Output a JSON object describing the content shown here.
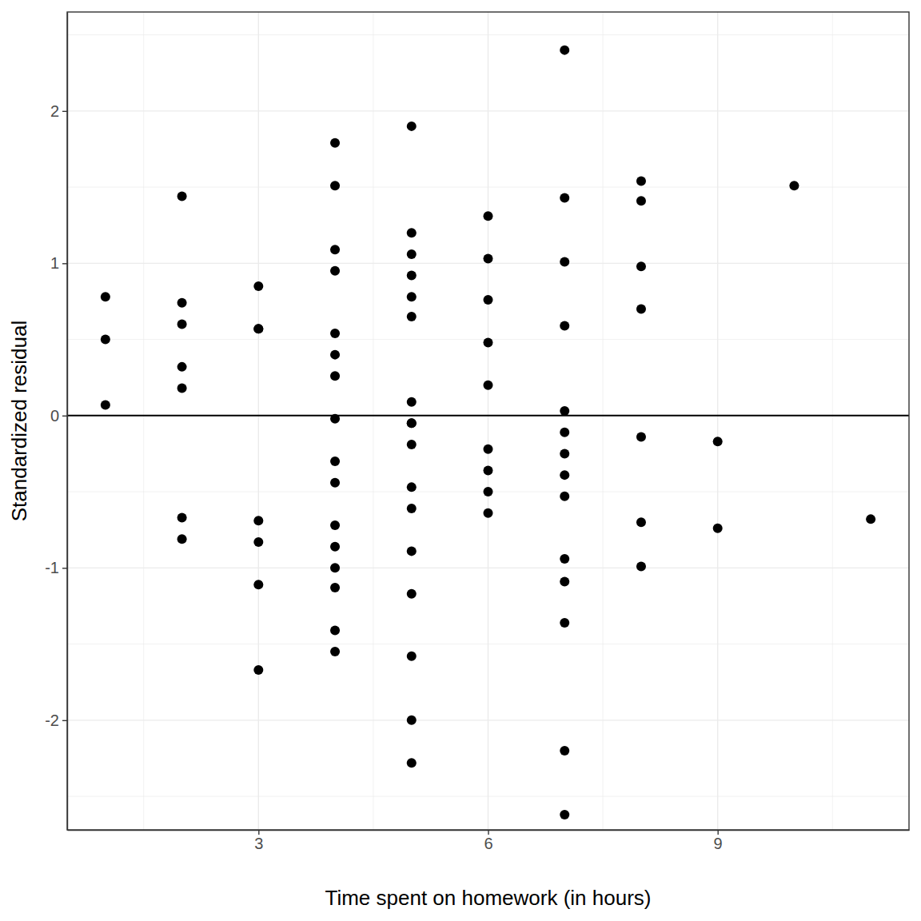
{
  "chart_data": {
    "type": "scatter",
    "x_label": "Time spent on homework (in hours)",
    "y_label": "Standardized residual",
    "x": [
      1,
      1,
      1,
      2,
      2,
      2,
      2,
      2,
      2,
      2,
      3,
      3,
      3,
      3,
      3,
      3,
      3,
      4,
      4,
      4,
      4,
      4,
      4,
      4,
      4,
      4,
      4,
      4,
      4,
      4,
      4,
      4,
      4,
      5,
      5,
      5,
      5,
      5,
      5,
      5,
      5,
      5,
      5,
      5,
      5,
      5,
      5,
      5,
      5,
      5,
      6,
      6,
      6,
      6,
      6,
      6,
      6,
      6,
      6,
      7,
      7,
      7,
      7,
      7,
      7,
      7,
      7,
      7,
      7,
      7,
      7,
      7,
      7,
      8,
      8,
      8,
      8,
      8,
      8,
      8,
      9,
      9,
      10,
      11
    ],
    "y": [
      0.78,
      0.5,
      0.07,
      1.44,
      0.74,
      0.6,
      0.32,
      0.18,
      -0.67,
      -0.81,
      0.85,
      0.57,
      0.57,
      -0.69,
      -0.83,
      -1.11,
      -1.67,
      1.79,
      1.51,
      1.09,
      0.95,
      0.54,
      0.4,
      0.26,
      -0.02,
      -0.3,
      -0.44,
      -0.72,
      -0.86,
      -1.0,
      -1.13,
      -1.41,
      -1.55,
      1.9,
      1.2,
      1.06,
      0.92,
      0.78,
      0.65,
      0.09,
      -0.05,
      -0.05,
      -0.19,
      -0.47,
      -0.61,
      -0.89,
      -1.17,
      -1.58,
      -2.0,
      -2.28,
      1.31,
      1.03,
      0.76,
      0.48,
      0.2,
      -0.22,
      -0.36,
      -0.5,
      -0.64,
      2.4,
      1.43,
      1.01,
      0.59,
      0.03,
      -0.11,
      -0.25,
      -0.39,
      -0.53,
      -0.94,
      -1.09,
      -1.36,
      -2.2,
      -2.62,
      1.54,
      1.41,
      0.98,
      0.7,
      -0.14,
      -0.7,
      -0.99,
      -0.17,
      -0.74,
      1.51,
      -0.68
    ],
    "color": "#000000",
    "hline": 0,
    "xlim": [
      0.5,
      11.5
    ],
    "ylim": [
      -2.72,
      2.65
    ],
    "xticks": [
      3,
      6,
      9
    ],
    "yticks": [
      -2,
      -1,
      0,
      1,
      2
    ],
    "grid": true
  }
}
